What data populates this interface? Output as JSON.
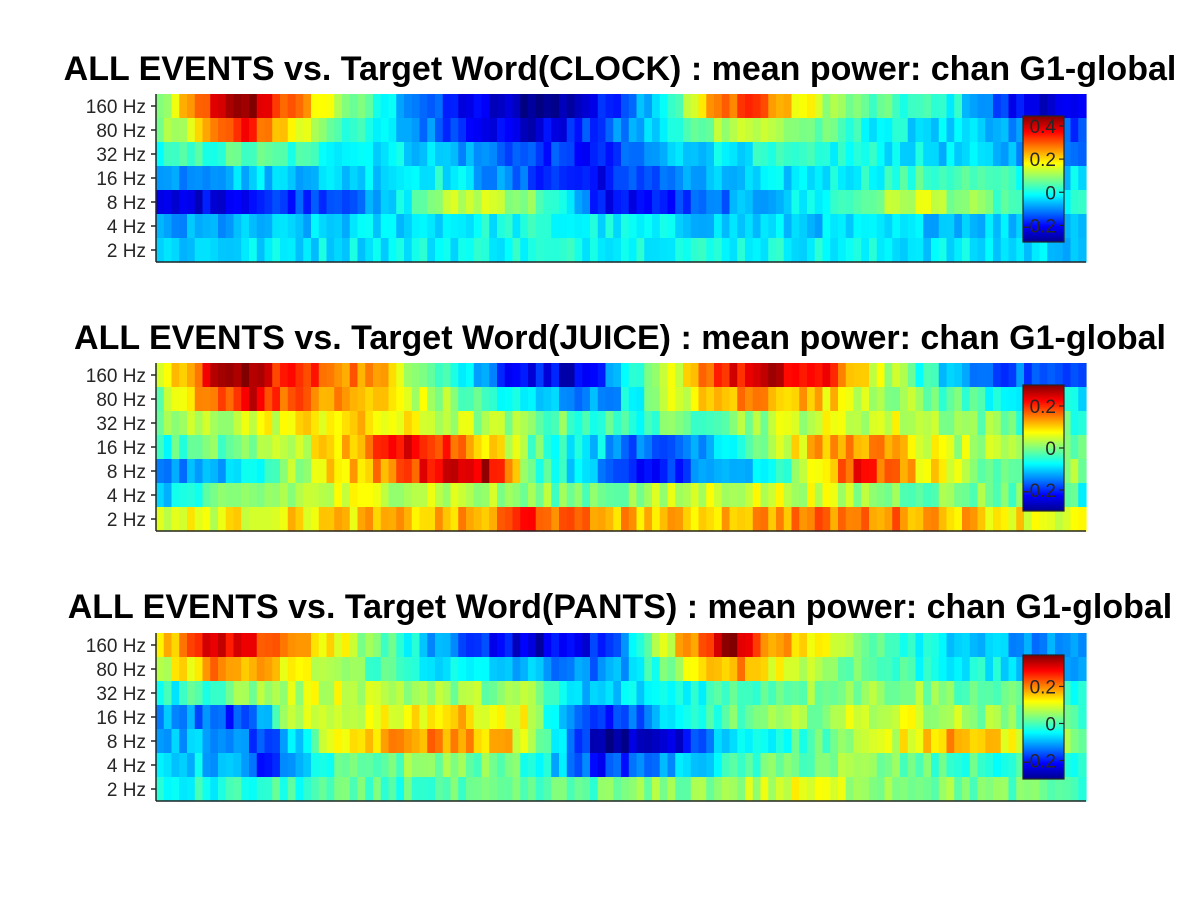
{
  "chart_data": [
    {
      "type": "heatmap",
      "title": "ALL EVENTS vs. Target Word(CLOCK) : mean power: chan G1-global",
      "y_categories": [
        "2 Hz",
        "4 Hz",
        "8 Hz",
        "16 Hz",
        "32 Hz",
        "80 Hz",
        "160 Hz"
      ],
      "colorbar": {
        "ticks": [
          "-0.2",
          "0",
          "0.2",
          "0.4"
        ],
        "tick_values": [
          -0.2,
          0,
          0.2,
          0.4
        ],
        "range": [
          -0.3,
          0.46
        ],
        "colormap": "jet"
      },
      "grid": false,
      "profile": {
        "band_160": [
          [
            0,
            0.05
          ],
          [
            6,
            0.35
          ],
          [
            10,
            0.46
          ],
          [
            14,
            0.3
          ],
          [
            22,
            0.05
          ],
          [
            32,
            -0.2
          ],
          [
            42,
            -0.3
          ],
          [
            48,
            -0.2
          ],
          [
            56,
            0.05
          ],
          [
            60,
            0.25
          ],
          [
            64,
            0.35
          ],
          [
            68,
            0.2
          ],
          [
            76,
            0.05
          ],
          [
            86,
            0.0
          ],
          [
            92,
            -0.2
          ],
          [
            100,
            -0.25
          ]
        ],
        "band_80": [
          [
            0,
            0.05
          ],
          [
            6,
            0.25
          ],
          [
            10,
            0.35
          ],
          [
            14,
            0.2
          ],
          [
            22,
            0.0
          ],
          [
            32,
            -0.15
          ],
          [
            40,
            -0.25
          ],
          [
            48,
            -0.15
          ],
          [
            56,
            0.0
          ],
          [
            62,
            0.15
          ],
          [
            68,
            0.1
          ],
          [
            76,
            0.0
          ],
          [
            86,
            -0.05
          ],
          [
            92,
            -0.1
          ],
          [
            100,
            -0.15
          ]
        ],
        "band_32": [
          [
            0,
            0.0
          ],
          [
            10,
            0.05
          ],
          [
            20,
            0.0
          ],
          [
            30,
            -0.05
          ],
          [
            40,
            -0.15
          ],
          [
            48,
            -0.2
          ],
          [
            56,
            -0.05
          ],
          [
            66,
            0.0
          ],
          [
            76,
            0.0
          ],
          [
            86,
            -0.05
          ],
          [
            100,
            -0.1
          ]
        ],
        "band_16": [
          [
            0,
            -0.1
          ],
          [
            10,
            -0.05
          ],
          [
            20,
            -0.05
          ],
          [
            30,
            0.0
          ],
          [
            40,
            -0.15
          ],
          [
            48,
            -0.2
          ],
          [
            56,
            -0.1
          ],
          [
            66,
            -0.05
          ],
          [
            76,
            0.0
          ],
          [
            86,
            0.05
          ],
          [
            100,
            -0.05
          ]
        ],
        "band_8": [
          [
            0,
            -0.25
          ],
          [
            8,
            -0.2
          ],
          [
            16,
            -0.15
          ],
          [
            24,
            -0.1
          ],
          [
            30,
            0.1
          ],
          [
            36,
            0.15
          ],
          [
            42,
            0.05
          ],
          [
            48,
            -0.2
          ],
          [
            54,
            -0.2
          ],
          [
            62,
            -0.1
          ],
          [
            72,
            0.0
          ],
          [
            82,
            0.15
          ],
          [
            90,
            0.05
          ],
          [
            100,
            0.0
          ]
        ],
        "band_4": [
          [
            0,
            -0.1
          ],
          [
            20,
            -0.05
          ],
          [
            40,
            0.0
          ],
          [
            60,
            -0.05
          ],
          [
            80,
            -0.05
          ],
          [
            100,
            -0.05
          ]
        ],
        "band_2": [
          [
            0,
            -0.05
          ],
          [
            40,
            0.0
          ],
          [
            60,
            0.0
          ],
          [
            100,
            -0.05
          ]
        ]
      }
    },
    {
      "type": "heatmap",
      "title": "ALL EVENTS vs. Target Word(JUICE) : mean power: chan G1-global",
      "y_categories": [
        "2 Hz",
        "4 Hz",
        "8 Hz",
        "16 Hz",
        "32 Hz",
        "80 Hz",
        "160 Hz"
      ],
      "colorbar": {
        "ticks": [
          "-0.2",
          "0",
          "0.2"
        ],
        "tick_values": [
          -0.2,
          0,
          0.2
        ],
        "range": [
          -0.3,
          0.3
        ],
        "colormap": "jet"
      },
      "grid": false,
      "profile": {
        "band_160": [
          [
            0,
            0.0
          ],
          [
            5,
            0.2
          ],
          [
            9,
            0.3
          ],
          [
            14,
            0.2
          ],
          [
            22,
            0.15
          ],
          [
            30,
            0.0
          ],
          [
            38,
            -0.2
          ],
          [
            46,
            -0.25
          ],
          [
            54,
            0.0
          ],
          [
            60,
            0.2
          ],
          [
            66,
            0.25
          ],
          [
            72,
            0.2
          ],
          [
            80,
            0.0
          ],
          [
            88,
            -0.15
          ],
          [
            100,
            -0.2
          ]
        ],
        "band_80": [
          [
            0,
            0.0
          ],
          [
            6,
            0.15
          ],
          [
            10,
            0.25
          ],
          [
            16,
            0.15
          ],
          [
            24,
            0.1
          ],
          [
            32,
            0.0
          ],
          [
            40,
            -0.1
          ],
          [
            48,
            -0.15
          ],
          [
            56,
            0.05
          ],
          [
            64,
            0.15
          ],
          [
            72,
            0.1
          ],
          [
            82,
            0.0
          ],
          [
            90,
            -0.05
          ],
          [
            100,
            -0.1
          ]
        ],
        "band_32": [
          [
            0,
            0.0
          ],
          [
            10,
            0.05
          ],
          [
            20,
            0.1
          ],
          [
            30,
            0.05
          ],
          [
            40,
            0.0
          ],
          [
            50,
            -0.05
          ],
          [
            60,
            0.0
          ],
          [
            70,
            0.05
          ],
          [
            80,
            0.05
          ],
          [
            90,
            0.0
          ],
          [
            100,
            -0.05
          ]
        ],
        "band_16": [
          [
            0,
            -0.05
          ],
          [
            10,
            0.0
          ],
          [
            20,
            0.1
          ],
          [
            28,
            0.25
          ],
          [
            34,
            0.15
          ],
          [
            40,
            0.0
          ],
          [
            48,
            -0.1
          ],
          [
            54,
            -0.2
          ],
          [
            62,
            -0.05
          ],
          [
            70,
            0.1
          ],
          [
            76,
            0.15
          ],
          [
            84,
            0.05
          ],
          [
            92,
            0.0
          ],
          [
            100,
            0.0
          ]
        ],
        "band_8": [
          [
            0,
            -0.15
          ],
          [
            8,
            -0.1
          ],
          [
            14,
            0.0
          ],
          [
            20,
            0.1
          ],
          [
            26,
            0.15
          ],
          [
            30,
            0.25
          ],
          [
            36,
            0.25
          ],
          [
            40,
            0.0
          ],
          [
            46,
            -0.1
          ],
          [
            52,
            -0.25
          ],
          [
            58,
            -0.15
          ],
          [
            66,
            -0.1
          ],
          [
            72,
            0.1
          ],
          [
            76,
            0.22
          ],
          [
            82,
            0.1
          ],
          [
            90,
            0.0
          ],
          [
            100,
            0.0
          ]
        ],
        "band_4": [
          [
            0,
            -0.1
          ],
          [
            10,
            0.0
          ],
          [
            20,
            0.05
          ],
          [
            30,
            0.05
          ],
          [
            40,
            0.0
          ],
          [
            50,
            0.0
          ],
          [
            60,
            0.05
          ],
          [
            70,
            0.05
          ],
          [
            80,
            0.0
          ],
          [
            90,
            0.0
          ],
          [
            100,
            -0.05
          ]
        ],
        "band_2": [
          [
            0,
            0.05
          ],
          [
            20,
            0.1
          ],
          [
            36,
            0.12
          ],
          [
            40,
            0.22
          ],
          [
            44,
            0.15
          ],
          [
            56,
            0.1
          ],
          [
            70,
            0.15
          ],
          [
            80,
            0.15
          ],
          [
            90,
            0.1
          ],
          [
            100,
            0.05
          ]
        ]
      }
    },
    {
      "type": "heatmap",
      "title": "ALL EVENTS vs. Target Word(PANTS) : mean power: chan G1-global",
      "y_categories": [
        "2 Hz",
        "4 Hz",
        "8 Hz",
        "16 Hz",
        "32 Hz",
        "80 Hz",
        "160 Hz"
      ],
      "colorbar": {
        "ticks": [
          "-0.2",
          "0",
          "0.2"
        ],
        "tick_values": [
          -0.2,
          0,
          0.2
        ],
        "range": [
          -0.3,
          0.37
        ],
        "colormap": "jet"
      },
      "grid": false,
      "profile": {
        "band_160": [
          [
            0,
            0.1
          ],
          [
            6,
            0.3
          ],
          [
            12,
            0.25
          ],
          [
            20,
            0.1
          ],
          [
            30,
            -0.1
          ],
          [
            40,
            -0.25
          ],
          [
            48,
            -0.2
          ],
          [
            54,
            0.05
          ],
          [
            60,
            0.3
          ],
          [
            62,
            0.37
          ],
          [
            66,
            0.2
          ],
          [
            72,
            0.1
          ],
          [
            80,
            0.0
          ],
          [
            90,
            -0.1
          ],
          [
            100,
            -0.15
          ]
        ],
        "band_80": [
          [
            0,
            0.05
          ],
          [
            6,
            0.2
          ],
          [
            12,
            0.15
          ],
          [
            20,
            0.05
          ],
          [
            30,
            -0.05
          ],
          [
            40,
            -0.1
          ],
          [
            48,
            -0.15
          ],
          [
            56,
            0.05
          ],
          [
            62,
            0.2
          ],
          [
            68,
            0.1
          ],
          [
            78,
            0.0
          ],
          [
            88,
            -0.05
          ],
          [
            100,
            -0.1
          ]
        ],
        "band_32": [
          [
            0,
            -0.05
          ],
          [
            10,
            0.05
          ],
          [
            20,
            0.1
          ],
          [
            30,
            0.05
          ],
          [
            40,
            0.05
          ],
          [
            46,
            -0.1
          ],
          [
            54,
            -0.05
          ],
          [
            62,
            0.0
          ],
          [
            72,
            0.05
          ],
          [
            82,
            0.05
          ],
          [
            92,
            0.0
          ],
          [
            100,
            -0.05
          ]
        ],
        "band_16": [
          [
            0,
            -0.1
          ],
          [
            6,
            -0.15
          ],
          [
            10,
            -0.2
          ],
          [
            14,
            0.05
          ],
          [
            22,
            0.1
          ],
          [
            32,
            0.15
          ],
          [
            40,
            0.1
          ],
          [
            46,
            -0.2
          ],
          [
            52,
            -0.15
          ],
          [
            60,
            0.0
          ],
          [
            70,
            0.05
          ],
          [
            80,
            0.1
          ],
          [
            88,
            0.05
          ],
          [
            100,
            0.0
          ]
        ],
        "band_8": [
          [
            0,
            -0.1
          ],
          [
            8,
            -0.1
          ],
          [
            12,
            -0.2
          ],
          [
            18,
            0.05
          ],
          [
            22,
            0.15
          ],
          [
            30,
            0.2
          ],
          [
            38,
            0.15
          ],
          [
            44,
            -0.1
          ],
          [
            48,
            -0.28
          ],
          [
            56,
            -0.25
          ],
          [
            62,
            -0.05
          ],
          [
            70,
            0.0
          ],
          [
            80,
            0.1
          ],
          [
            86,
            0.2
          ],
          [
            94,
            0.1
          ],
          [
            100,
            0.0
          ]
        ],
        "band_4": [
          [
            0,
            -0.05
          ],
          [
            8,
            -0.1
          ],
          [
            12,
            -0.2
          ],
          [
            20,
            0.0
          ],
          [
            30,
            0.05
          ],
          [
            40,
            0.0
          ],
          [
            48,
            -0.2
          ],
          [
            56,
            -0.1
          ],
          [
            64,
            0.0
          ],
          [
            74,
            0.05
          ],
          [
            84,
            0.0
          ],
          [
            100,
            -0.05
          ]
        ],
        "band_2": [
          [
            0,
            -0.05
          ],
          [
            20,
            0.0
          ],
          [
            40,
            0.0
          ],
          [
            60,
            0.05
          ],
          [
            70,
            0.1
          ],
          [
            80,
            0.05
          ],
          [
            100,
            0.0
          ]
        ]
      }
    }
  ]
}
